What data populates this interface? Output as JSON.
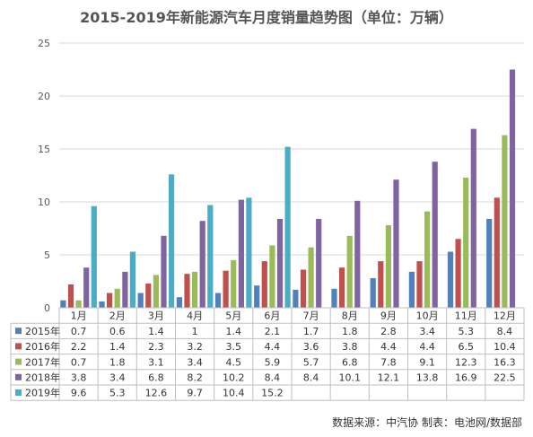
{
  "chart_data": {
    "type": "bar",
    "title": "2015-2019年新能源汽车月度销量趋势图（单位：万辆）",
    "categories": [
      "1月",
      "2月",
      "3月",
      "4月",
      "5月",
      "6月",
      "7月",
      "8月",
      "9月",
      "10月",
      "11月",
      "12月"
    ],
    "ylim": [
      0,
      25
    ],
    "yticks": [
      0,
      5,
      10,
      15,
      20,
      25
    ],
    "grid": true,
    "legend": "data-table-left",
    "series": [
      {
        "name": "2015年",
        "color": "#4f81bd",
        "values": [
          0.7,
          0.6,
          1.4,
          1.0,
          1.4,
          2.1,
          1.7,
          1.8,
          2.8,
          3.4,
          5.3,
          8.4
        ]
      },
      {
        "name": "2016年",
        "color": "#c0504d",
        "values": [
          2.2,
          1.4,
          2.3,
          3.2,
          3.5,
          4.4,
          3.6,
          3.8,
          4.4,
          4.4,
          6.5,
          10.4
        ]
      },
      {
        "name": "2017年",
        "color": "#9bbb59",
        "values": [
          0.7,
          1.8,
          3.1,
          3.4,
          4.5,
          5.9,
          5.7,
          6.8,
          7.8,
          9.1,
          12.3,
          16.3
        ]
      },
      {
        "name": "2018年",
        "color": "#8064a2",
        "values": [
          3.8,
          3.4,
          6.8,
          8.2,
          10.2,
          8.4,
          8.4,
          10.1,
          12.1,
          13.8,
          16.9,
          22.5
        ]
      },
      {
        "name": "2019年",
        "color": "#4bacc6",
        "values": [
          9.6,
          5.3,
          12.6,
          9.7,
          10.4,
          15.2,
          null,
          null,
          null,
          null,
          null,
          null
        ]
      }
    ]
  },
  "source_note": "数据来源：中汽协  制表：电池网/数据部"
}
